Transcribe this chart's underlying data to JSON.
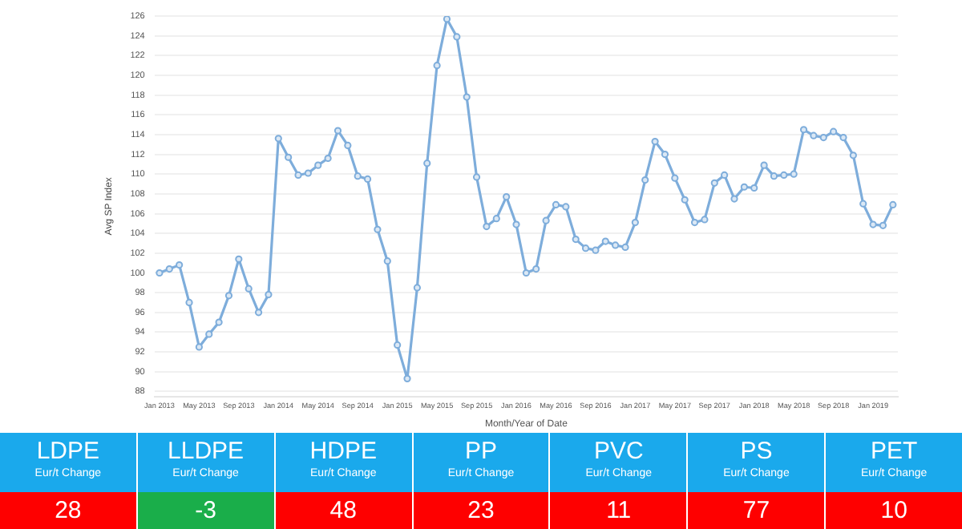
{
  "chart_data": [
    {
      "type": "line",
      "xlabel": "Month/Year of Date",
      "ylabel": "Avg SP Index",
      "categories": [
        "Jan 2013",
        null,
        null,
        null,
        "May 2013",
        null,
        null,
        null,
        "Sep 2013",
        null,
        null,
        null,
        "Jan 2014",
        null,
        null,
        null,
        "May 2014",
        null,
        null,
        null,
        "Sep 2014",
        null,
        null,
        null,
        "Jan 2015",
        null,
        null,
        null,
        "May 2015",
        null,
        null,
        null,
        "Sep 2015",
        null,
        null,
        null,
        "Jan 2016",
        null,
        null,
        null,
        "May 2016",
        null,
        null,
        null,
        "Sep 2016",
        null,
        null,
        null,
        "Jan 2017",
        null,
        null,
        null,
        "May 2017",
        null,
        null,
        null,
        "Sep 2017",
        null,
        null,
        null,
        "Jan 2018",
        null,
        null,
        null,
        "May 2018",
        null,
        null,
        null,
        "Sep 2018",
        null,
        null,
        null,
        "Jan 2019",
        null,
        null
      ],
      "series": [
        {
          "color": "#7eaddb",
          "values": [
            100.0,
            100.4,
            100.8,
            97.0,
            92.5,
            93.8,
            95.0,
            97.7,
            101.4,
            98.4,
            96.0,
            97.8,
            113.6,
            111.7,
            109.9,
            110.1,
            110.9,
            111.6,
            114.4,
            112.9,
            109.8,
            109.5,
            104.4,
            101.2,
            92.7,
            89.3,
            98.5,
            111.1,
            121.0,
            125.7,
            123.9,
            117.8,
            109.7,
            104.7,
            105.5,
            107.7,
            104.9,
            100.0,
            100.4,
            105.3,
            106.9,
            106.7,
            103.4,
            102.5,
            102.3,
            103.2,
            102.8,
            102.6,
            105.1,
            109.4,
            113.3,
            112.0,
            109.6,
            107.4,
            105.1,
            105.4,
            109.1,
            109.9,
            107.5,
            108.7,
            108.6,
            110.9,
            109.8,
            109.9,
            110.0,
            114.5,
            113.9,
            113.7,
            114.3,
            113.7,
            111.9,
            107.0,
            104.9,
            104.8,
            106.9
          ]
        }
      ],
      "ylim": [
        87.5,
        126
      ],
      "yticks": [
        88,
        90,
        92,
        94,
        96,
        98,
        100,
        102,
        104,
        106,
        108,
        110,
        112,
        114,
        116,
        118,
        120,
        122,
        124,
        126
      ],
      "grid": "y",
      "marker": "circle",
      "line_style": "solid"
    },
    {
      "type": "other",
      "annotations": [
        "LDPE",
        "Eur/t Change",
        "28",
        "LLDPE",
        "Eur/t Change",
        "-3",
        "HDPE",
        "Eur/t Change",
        "48",
        "PP",
        "Eur/t Change",
        "23",
        "PVC",
        "Eur/t Change",
        "11",
        "PS",
        "Eur/t Change",
        "77",
        "PET",
        "Eur/t Change",
        "10"
      ]
    }
  ]
}
